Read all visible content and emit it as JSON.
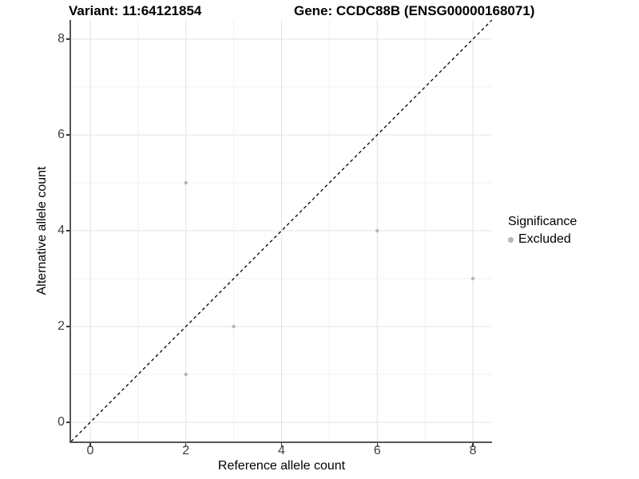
{
  "chart_data": {
    "type": "scatter",
    "title_left": "Variant: 11:64121854",
    "title_right": "Gene: CCDC88B (ENSG00000168071)",
    "xlabel": "Reference allele count",
    "ylabel": "Alternative allele count",
    "xlim": [
      -0.4,
      8.4
    ],
    "ylim": [
      -0.4,
      8.4
    ],
    "x_major_ticks": [
      0,
      2,
      4,
      6,
      8
    ],
    "y_major_ticks": [
      0,
      2,
      4,
      6,
      8
    ],
    "x_minor_gridlines": [
      1,
      3,
      5,
      7
    ],
    "y_minor_gridlines": [
      1,
      3,
      5,
      7
    ],
    "grid": true,
    "legend": {
      "title": "Significance",
      "position": "right",
      "entries": [
        {
          "label": "Excluded",
          "color": "#b5b5b5"
        }
      ]
    },
    "series": [
      {
        "name": "Excluded",
        "color": "#b5b5b5",
        "points": [
          [
            2,
            1
          ],
          [
            2,
            5
          ],
          [
            3,
            2
          ],
          [
            6,
            4
          ],
          [
            8,
            3
          ]
        ]
      }
    ],
    "reference_line": {
      "type": "identity",
      "style": "dashed",
      "color": "#000000"
    }
  },
  "colors": {
    "major_grid": "#e3e3e3",
    "minor_grid": "#f0f0f0",
    "axis_line": "#565656",
    "tick_mark": "#333333",
    "tick_label": "#404040",
    "point": "#b5b5b5"
  }
}
